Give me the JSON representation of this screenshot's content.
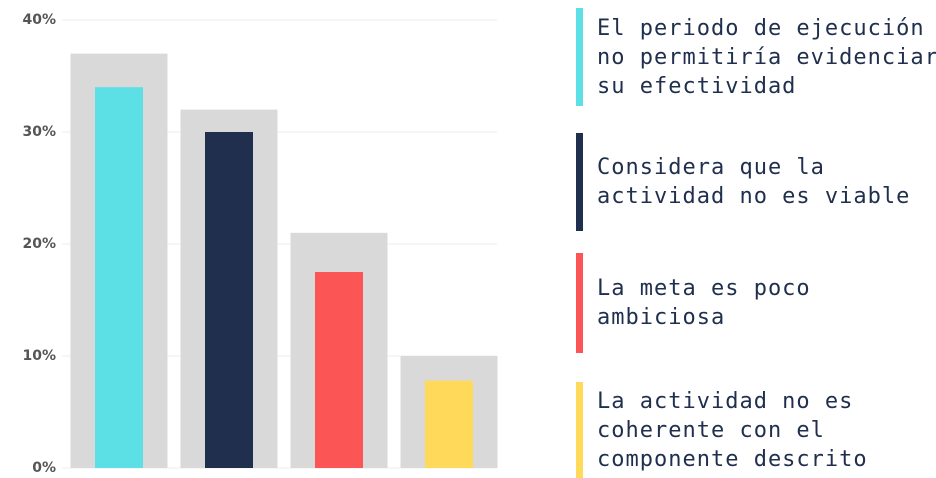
{
  "chart_data": {
    "type": "bar",
    "categories": [
      "El periodo de ejecución no permitiría evidenciar su efectividad",
      "Considera que la actividad no es viable",
      "La meta es poco ambiciosa",
      "La actividad no es coherente con el componente descrito"
    ],
    "series": [
      {
        "color": "#d9d9d9",
        "values": [
          37,
          32,
          21,
          10
        ]
      },
      {
        "colors": [
          "#5ce0e6",
          "#1f2f4d",
          "#fc5555",
          "#ffd95a"
        ],
        "values": [
          34,
          30,
          17.5,
          7.8
        ]
      }
    ],
    "ylim": [
      0,
      40
    ],
    "yticks": [
      {
        "value": 0,
        "label": "0%"
      },
      {
        "value": 10,
        "label": "10%"
      },
      {
        "value": 20,
        "label": "20%"
      },
      {
        "value": 30,
        "label": "30%"
      },
      {
        "value": 40,
        "label": "40%"
      }
    ],
    "grid": true
  }
}
